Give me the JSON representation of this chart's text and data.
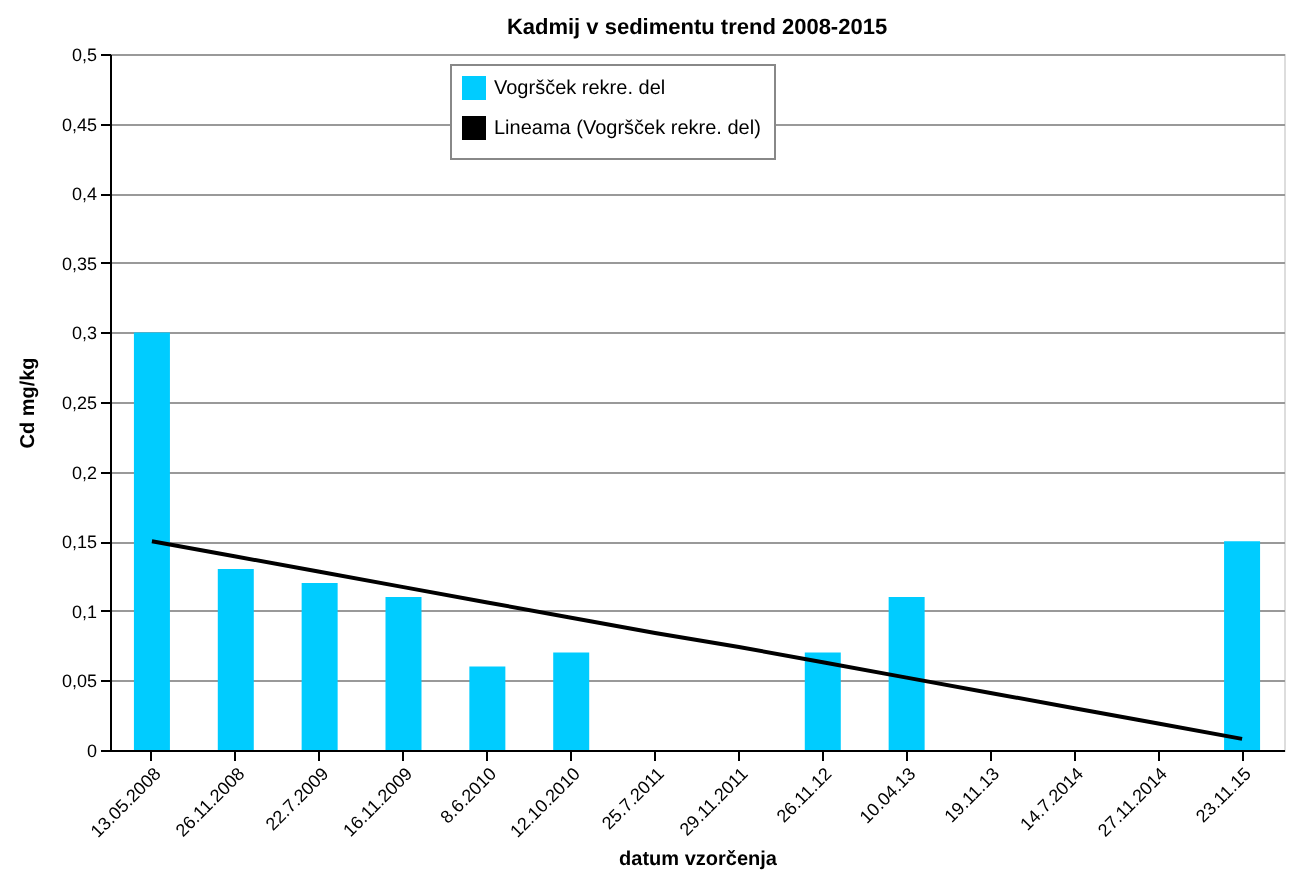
{
  "chart_data": {
    "type": "bar",
    "title": "Kadmij v sedimentu trend 2008-2015",
    "xlabel": "datum vzorčenja",
    "ylabel": "Cd mg/kg",
    "categories": [
      "13.05.2008",
      "26.11.2008",
      "22.7.2009",
      "16.11.2009",
      "8.6.2010",
      "12.10.2010",
      "25.7.2011",
      "29.11.2011",
      "26.11.12",
      "10.04.13",
      "19.11.13",
      "14.7.2014",
      "27.11.2014",
      "23.11.15"
    ],
    "series": [
      {
        "name": "Vogršček rekre. del",
        "color": "#00ccff",
        "values": [
          0.3,
          0.13,
          0.12,
          0.11,
          0.06,
          0.07,
          null,
          null,
          0.07,
          0.11,
          null,
          null,
          null,
          0.15
        ]
      },
      {
        "name": "Lineama (Vogršček rekre. del)",
        "type": "line",
        "color": "#000000",
        "values": [
          0.15,
          0.139,
          0.128,
          0.117,
          0.106,
          0.095,
          0.084,
          0.074,
          0.063,
          0.052,
          0.041,
          0.03,
          0.019,
          0.008
        ]
      }
    ],
    "ylim": [
      0,
      0.5
    ],
    "yticks": [
      0,
      {
        "value": 0.05,
        "label": "0,05"
      },
      {
        "value": 0.1,
        "label": "0,1"
      },
      {
        "value": 0.15,
        "label": "0,15"
      },
      {
        "value": 0.2,
        "label": "0,2"
      },
      {
        "value": 0.25,
        "label": "0,25"
      },
      {
        "value": 0.3,
        "label": "0,3"
      },
      {
        "value": 0.35,
        "label": "0,35"
      },
      {
        "value": 0.4,
        "label": "0,4"
      },
      {
        "value": 0.45,
        "label": "0,45"
      },
      {
        "value": 0.5,
        "label": "0,5"
      }
    ],
    "grid": "y",
    "legend": "top",
    "marker": "none",
    "line_style": "solid"
  }
}
